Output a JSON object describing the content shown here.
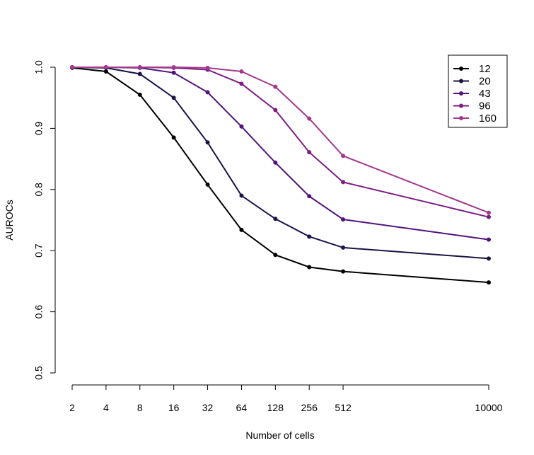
{
  "chart_data": {
    "type": "line",
    "title": "",
    "xlabel": "Number of cells",
    "ylabel": "AUROCs",
    "categories": [
      "2",
      "4",
      "8",
      "16",
      "32",
      "64",
      "128",
      "256",
      "512",
      "10000"
    ],
    "x_positions": [
      1,
      2,
      3,
      4,
      5,
      6,
      7,
      8,
      9,
      13.3
    ],
    "xlim": [
      1,
      13.3
    ],
    "ylim": [
      0.5,
      1.0
    ],
    "yticks": [
      "0.5",
      "0.6",
      "0.7",
      "0.8",
      "0.9",
      "1.0"
    ],
    "ytick_values": [
      0.5,
      0.6,
      0.7,
      0.8,
      0.9,
      1.0
    ],
    "grid": false,
    "legend_position": "top-right",
    "series": [
      {
        "name": "12",
        "color": "#000004",
        "values": [
          0.999,
          0.993,
          0.955,
          0.885,
          0.808,
          0.734,
          0.693,
          0.673,
          0.666,
          0.648
        ]
      },
      {
        "name": "20",
        "color": "#1d1147",
        "values": [
          1.0,
          0.999,
          0.989,
          0.95,
          0.877,
          0.79,
          0.752,
          0.723,
          0.705,
          0.687
        ]
      },
      {
        "name": "43",
        "color": "#51127c",
        "values": [
          1.0,
          1.0,
          0.999,
          0.991,
          0.959,
          0.903,
          0.844,
          0.789,
          0.751,
          0.718
        ]
      },
      {
        "name": "96",
        "color": "#7b1e82",
        "values": [
          1.0,
          1.0,
          1.0,
          0.999,
          0.996,
          0.973,
          0.93,
          0.861,
          0.812,
          0.755
        ]
      },
      {
        "name": "160",
        "color": "#a4388b",
        "values": [
          1.0,
          1.0,
          1.0,
          1.0,
          0.999,
          0.993,
          0.968,
          0.916,
          0.855,
          0.762
        ]
      }
    ]
  }
}
